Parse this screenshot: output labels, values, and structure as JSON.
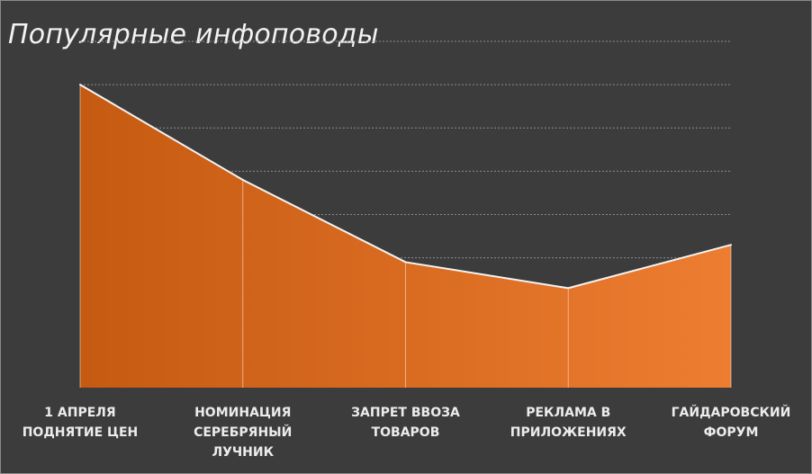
{
  "chart_data": {
    "type": "area",
    "title": "Популярные инфоповоды",
    "categories": [
      [
        "1 АПРЕЛЯ",
        "ПОДНЯТИЕ ЦЕН"
      ],
      [
        "НОМИНАЦИЯ",
        "СЕРЕБРЯНЫЙ",
        "ЛУЧНИК"
      ],
      [
        "ЗАПРЕТ ВВОЗА",
        "ТОВАРОВ"
      ],
      [
        "РЕКЛАМА В",
        "ПРИЛОЖЕНИЯХ"
      ],
      [
        "ГАЙДАРОВСКИЙ",
        "ФОРУМ"
      ]
    ],
    "values": [
      7.0,
      4.8,
      2.9,
      2.3,
      3.3
    ],
    "ylim": [
      0,
      8
    ],
    "grid": true,
    "legend": "none",
    "colors": {
      "area_start": "#c55a11",
      "area_end": "#ed7d31",
      "series_line": "#f4f4f4",
      "gridline": "#8c8c8c",
      "background": "#3c3c3c",
      "text": "#ececec"
    }
  }
}
